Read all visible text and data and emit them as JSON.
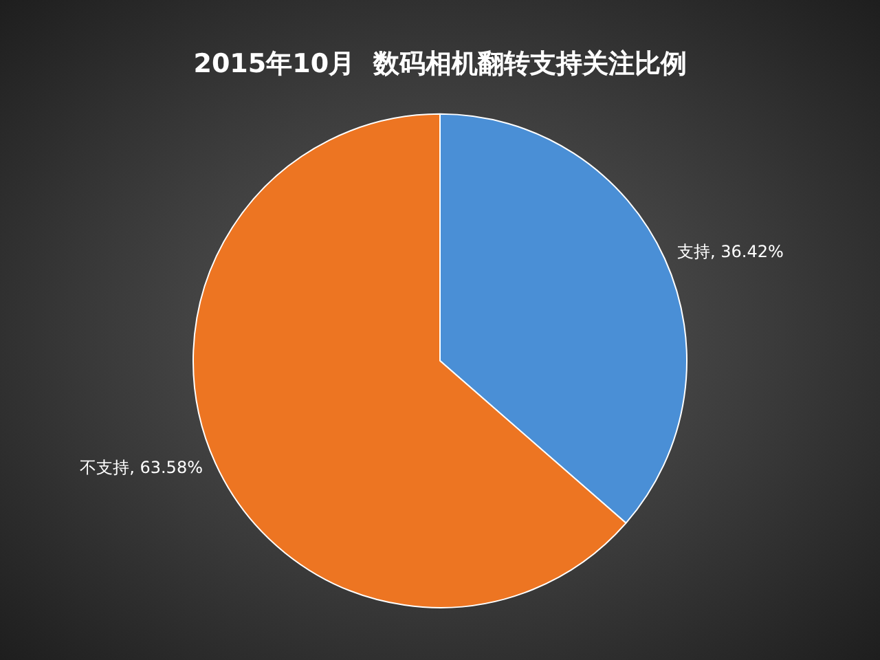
{
  "chart_data": {
    "type": "pie",
    "title": "2015年10月  数码相机翻转支持关注比例",
    "categories": [
      "支持",
      "不支持"
    ],
    "values": [
      36.42,
      63.58
    ],
    "colors": [
      "#4a8fd6",
      "#ed7522"
    ],
    "value_labels": [
      "36.42%",
      "63.58%"
    ],
    "legend": false
  }
}
